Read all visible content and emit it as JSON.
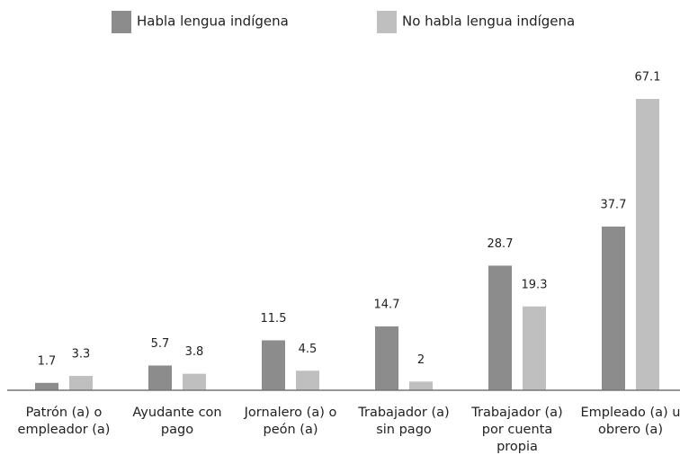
{
  "chart_data": {
    "type": "bar",
    "categories": [
      "Patrón (a) o empleador (a)",
      "Ayudante con pago",
      "Jornalero (a) o peón (a)",
      "Trabajador (a) sin pago",
      "Trabajador (a) por cuenta propia",
      "Empleado (a) u obrero (a)"
    ],
    "series": [
      {
        "name": "Habla lengua indígena",
        "color": "#8c8c8c",
        "values": [
          1.7,
          5.7,
          11.5,
          14.7,
          28.7,
          37.7
        ]
      },
      {
        "name": "No habla lengua indígena",
        "color": "#bfbfbf",
        "values": [
          3.3,
          3.8,
          4.5,
          2,
          19.3,
          67.1
        ]
      }
    ],
    "legend": "top"
  }
}
